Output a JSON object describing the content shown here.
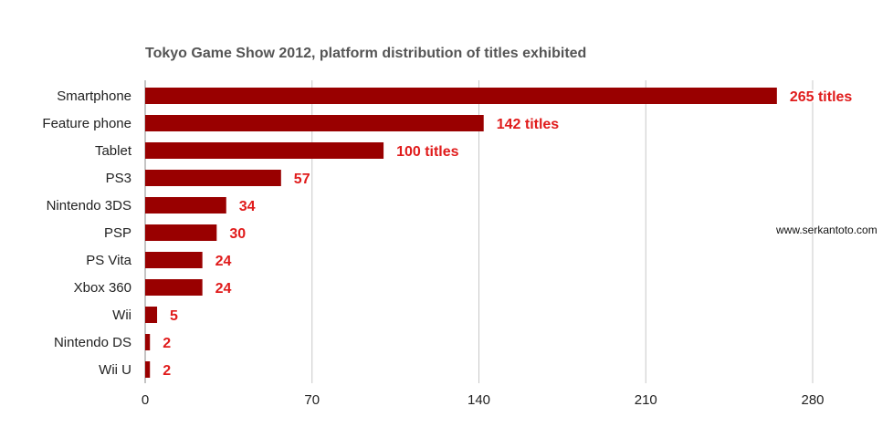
{
  "chart_data": {
    "type": "bar",
    "orientation": "horizontal",
    "title": "Tokyo Game Show 2012, platform distribution of titles exhibited",
    "xlabel": "",
    "ylabel": "",
    "categories": [
      "Smartphone",
      "Feature phone",
      "Tablet",
      "PS3",
      "Nintendo 3DS",
      "PSP",
      "PS Vita",
      "Xbox 360",
      "Wii",
      "Nintendo DS",
      "Wii U"
    ],
    "values": [
      265,
      142,
      100,
      57,
      34,
      30,
      24,
      24,
      5,
      2,
      2
    ],
    "data_labels": [
      "265 titles",
      "142 titles",
      "100 titles",
      "57",
      "34",
      "30",
      "24",
      "24",
      "5",
      "2",
      "2"
    ],
    "xlim": [
      0,
      280
    ],
    "xticks": [
      0,
      70,
      140,
      210,
      280
    ],
    "xtick_labels": [
      "0",
      "70",
      "140",
      "210",
      "280"
    ],
    "grid": true,
    "legend": "none",
    "bar_color": "#990000",
    "label_color": "#e01b1b"
  },
  "watermark": "www.serkantoto.com"
}
